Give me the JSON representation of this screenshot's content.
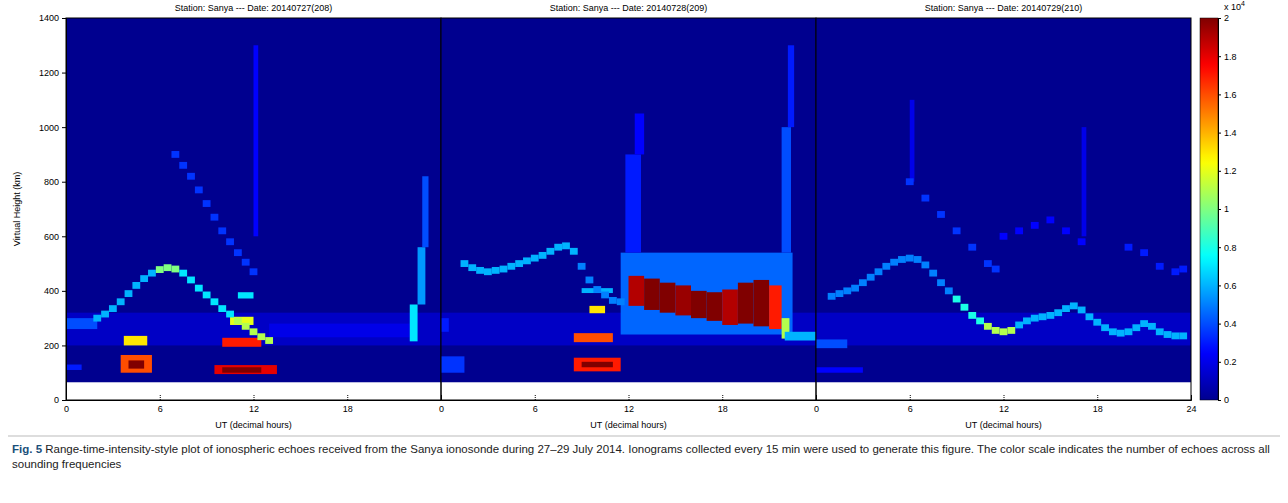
{
  "chart_data": {
    "type": "heatmap",
    "color": "jet",
    "y_label": "Virtual Height (km)",
    "ylim": [
      0,
      1400
    ],
    "yticks": [
      0,
      200,
      400,
      600,
      800,
      1000,
      1200,
      1400
    ],
    "blank_below": 65,
    "trace_cell_hours": 0.5,
    "trace_cell_km": 25,
    "colorbar": {
      "range": [
        0,
        20000
      ],
      "ticks": [
        {
          "value": 0,
          "label": "0"
        },
        {
          "value": 2000,
          "label": "0.2"
        },
        {
          "value": 4000,
          "label": "0.4"
        },
        {
          "value": 6000,
          "label": "0.6"
        },
        {
          "value": 8000,
          "label": "0.8"
        },
        {
          "value": 10000,
          "label": "1"
        },
        {
          "value": 12000,
          "label": "1.2"
        },
        {
          "value": 14000,
          "label": "1.4"
        },
        {
          "value": 16000,
          "label": "1.6"
        },
        {
          "value": 18000,
          "label": "1.8"
        },
        {
          "value": 20000,
          "label": "2"
        }
      ],
      "multiplier": "x 10",
      "exponent": "4"
    },
    "caption_label": "Fig. 5",
    "caption": "Range-time-intensity-style plot of ionospheric echoes received from the Sanya ionosonde during 27–29 July 2014. Ionograms collected every 15 min were used to generate this figure. The color scale indicates the number of echoes across all sounding frequencies",
    "panels": [
      {
        "title": "Station: Sanya --- Date: 20140727(208)",
        "x_label": "UT (decimal hours)",
        "xlim": [
          0,
          24
        ],
        "xticks": [
          0,
          6,
          12,
          18
        ],
        "cells": [
          [
            0,
            24,
            200,
            320,
            1200
          ],
          [
            13,
            22,
            230,
            280,
            2000
          ],
          [
            0,
            2,
            260,
            300,
            4000
          ],
          [
            0,
            1,
            110,
            130,
            3000
          ],
          [
            3.5,
            5.5,
            100,
            165,
            16000
          ],
          [
            4,
            5,
            115,
            145,
            20000
          ],
          [
            3.7,
            5.2,
            200,
            235,
            13000
          ],
          [
            9.5,
            13.5,
            95,
            128,
            18000
          ],
          [
            10,
            12.5,
            100,
            120,
            20000
          ],
          [
            10,
            12.5,
            195,
            228,
            17000
          ],
          [
            10.5,
            12,
            275,
            305,
            12000
          ],
          [
            11,
            12,
            372,
            395,
            7000
          ],
          [
            12,
            12.3,
            600,
            1300,
            2500
          ],
          [
            22,
            22.5,
            215,
            350,
            7000
          ],
          [
            22.5,
            23,
            350,
            560,
            5500
          ],
          [
            22.8,
            23.2,
            560,
            820,
            4000
          ]
        ],
        "traces": [
          {
            "value": 6000,
            "t": [
              2,
              2.5,
              3,
              3.5,
              4,
              4.5,
              5,
              5.5
            ],
            "h": [
              300,
              315,
              335,
              360,
              390,
              420,
              445,
              465
            ]
          },
          {
            "value": 10000,
            "t": [
              6,
              6.5,
              7
            ],
            "h": [
              478,
              485,
              480
            ]
          },
          {
            "value": 7000,
            "t": [
              7.5,
              8,
              8.5,
              9,
              9.5,
              10,
              10.5
            ],
            "h": [
              465,
              440,
              410,
              385,
              360,
              335,
              315
            ]
          },
          {
            "value": 11000,
            "t": [
              11,
              11.5,
              12,
              12.5,
              13
            ],
            "h": [
              290,
              270,
              250,
              232,
              218
            ]
          },
          {
            "value": 3500,
            "t": [
              7,
              7.5,
              8,
              8.5,
              9,
              9.5,
              10,
              10.5,
              11,
              11.5,
              12
            ],
            "h": [
              900,
              860,
              820,
              770,
              720,
              670,
              620,
              580,
              540,
              505,
              470
            ]
          }
        ]
      },
      {
        "title": "Station: Sanya --- Date: 20140728(209)",
        "x_label": "UT (decimal hours)",
        "xlim": [
          0,
          24
        ],
        "xticks": [
          0,
          6,
          12,
          18
        ],
        "cells": [
          [
            0,
            24,
            200,
            320,
            1200
          ],
          [
            0,
            1.5,
            100,
            160,
            3500
          ],
          [
            0,
            0.5,
            250,
            300,
            3000
          ],
          [
            11.5,
            22.5,
            240,
            540,
            4500
          ],
          [
            11.8,
            12.8,
            540,
            900,
            3000
          ],
          [
            12.4,
            13,
            900,
            1050,
            2500
          ],
          [
            21.8,
            22.4,
            540,
            1000,
            4000
          ],
          [
            22.2,
            22.6,
            1000,
            1300,
            3000
          ],
          [
            12,
            13,
            345,
            455,
            19000
          ],
          [
            13,
            14,
            330,
            445,
            20000
          ],
          [
            14,
            15,
            320,
            430,
            20000
          ],
          [
            15,
            16,
            310,
            420,
            19500
          ],
          [
            16,
            17,
            300,
            400,
            20000
          ],
          [
            17,
            18,
            290,
            395,
            20000
          ],
          [
            18,
            19,
            275,
            405,
            19000
          ],
          [
            19,
            20,
            280,
            430,
            20000
          ],
          [
            20,
            21,
            270,
            440,
            20000
          ],
          [
            21,
            21.8,
            260,
            420,
            17000
          ],
          [
            21.8,
            22.3,
            225,
            300,
            11000
          ],
          [
            8.5,
            11.5,
            105,
            155,
            17000
          ],
          [
            9,
            11,
            120,
            140,
            20000
          ],
          [
            8.5,
            11,
            212,
            245,
            16000
          ],
          [
            9.5,
            10.5,
            318,
            345,
            13000
          ],
          [
            9,
            11,
            392,
            410,
            6000
          ],
          [
            22,
            24,
            218,
            250,
            6000
          ]
        ],
        "traces": [
          {
            "value": 6000,
            "t": [
              1.5,
              2,
              2.5,
              3,
              3.5,
              4,
              4.5,
              5,
              5.5,
              6,
              6.5,
              7,
              7.5,
              8,
              8.5
            ],
            "h": [
              500,
              485,
              475,
              470,
              475,
              480,
              490,
              500,
              510,
              520,
              530,
              545,
              560,
              565,
              545
            ]
          },
          {
            "value": 5000,
            "t": [
              9,
              9.5,
              10,
              10.5,
              11,
              11.5
            ],
            "h": [
              490,
              440,
              405,
              385,
              365,
              360
            ]
          }
        ]
      },
      {
        "title": "Station: Sanya --- Date: 20140729(210)",
        "x_label": "UT (decimal hours)",
        "xlim": [
          0,
          24
        ],
        "xticks": [
          0,
          6,
          12,
          18,
          24
        ],
        "cells": [
          [
            0,
            24,
            200,
            320,
            1200
          ],
          [
            0,
            3,
            100,
            120,
            2500
          ],
          [
            0,
            2,
            190,
            222,
            4000
          ],
          [
            6,
            6.3,
            800,
            1100,
            2000
          ],
          [
            17,
            17.3,
            600,
            1000,
            2000
          ]
        ],
        "traces": [
          {
            "value": 5000,
            "t": [
              1,
              1.5,
              2,
              2.5,
              3,
              3.5,
              4,
              4.5,
              5,
              5.5,
              6,
              6.5,
              7,
              7.5,
              8,
              8.5
            ],
            "h": [
              380,
              390,
              400,
              410,
              430,
              450,
              470,
              490,
              505,
              515,
              520,
              515,
              495,
              465,
              430,
              400
            ]
          },
          {
            "value": 8000,
            "t": [
              9,
              9.5,
              10,
              10.5
            ],
            "h": [
              370,
              340,
              310,
              290
            ]
          },
          {
            "value": 11000,
            "t": [
              11,
              11.5,
              12,
              12.5
            ],
            "h": [
              270,
              255,
              250,
              255
            ]
          },
          {
            "value": 6000,
            "t": [
              13,
              13.5,
              14,
              14.5,
              15,
              15.5,
              16,
              16.5,
              17,
              17.5,
              18,
              18.5,
              19,
              19.5,
              20,
              20.5,
              21,
              21.5,
              22,
              22.5,
              23,
              23.5
            ],
            "h": [
              275,
              290,
              300,
              305,
              310,
              320,
              335,
              345,
              330,
              305,
              285,
              265,
              250,
              245,
              250,
              265,
              280,
              270,
              250,
              240,
              235,
              235
            ]
          },
          {
            "value": 3500,
            "t": [
              6,
              7,
              8,
              9,
              10,
              11,
              11.5
            ],
            "h": [
              800,
              740,
              680,
              620,
              560,
              500,
              480
            ]
          },
          {
            "value": 2500,
            "t": [
              12,
              13,
              14,
              15,
              16,
              17
            ],
            "h": [
              600,
              620,
              640,
              660,
              620,
              580
            ]
          },
          {
            "value": 3000,
            "t": [
              20,
              21,
              22,
              23,
              23.5
            ],
            "h": [
              560,
              540,
              490,
              470,
              480
            ]
          }
        ]
      }
    ]
  }
}
